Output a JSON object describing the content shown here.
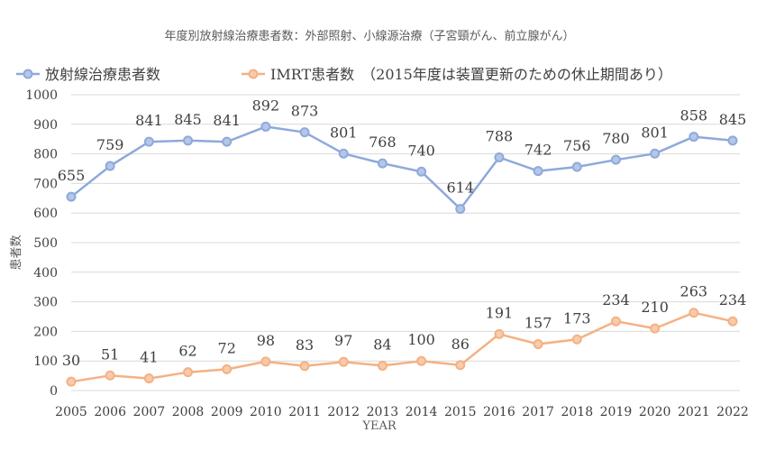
{
  "chart_data": {
    "type": "line",
    "title": "年度別放射線治療患者数：外部照射、小線源治療（子宮頸がん、前立腺がん）",
    "xlabel": "YEAR",
    "ylabel": "患者数",
    "ylim": [
      0,
      1000
    ],
    "ytick_step": 100,
    "yticks": [
      "0",
      "100",
      "200",
      "300",
      "400",
      "500",
      "600",
      "700",
      "800",
      "900",
      "1000"
    ],
    "grid": true,
    "legend_position": "top",
    "x": [
      "2005",
      "2006",
      "2007",
      "2008",
      "2009",
      "2010",
      "2011",
      "2012",
      "2013",
      "2014",
      "2015",
      "2016",
      "2017",
      "2018",
      "2019",
      "2020",
      "2021",
      "2022"
    ],
    "series": [
      {
        "name": "放射線治療患者数",
        "color": "#8EA9DB",
        "marker_fill": "#B4C7E7",
        "values": [
          655,
          759,
          841,
          845,
          841,
          892,
          873,
          801,
          768,
          740,
          614,
          788,
          742,
          756,
          780,
          801,
          858,
          845
        ]
      },
      {
        "name": "IMRT患者数　（2015年度は装置更新のための休止期間あり）",
        "color": "#F4B183",
        "marker_fill": "#F8CBAD",
        "values": [
          30,
          51,
          41,
          62,
          72,
          98,
          83,
          97,
          84,
          100,
          86,
          191,
          157,
          173,
          234,
          210,
          263,
          234
        ]
      }
    ]
  }
}
